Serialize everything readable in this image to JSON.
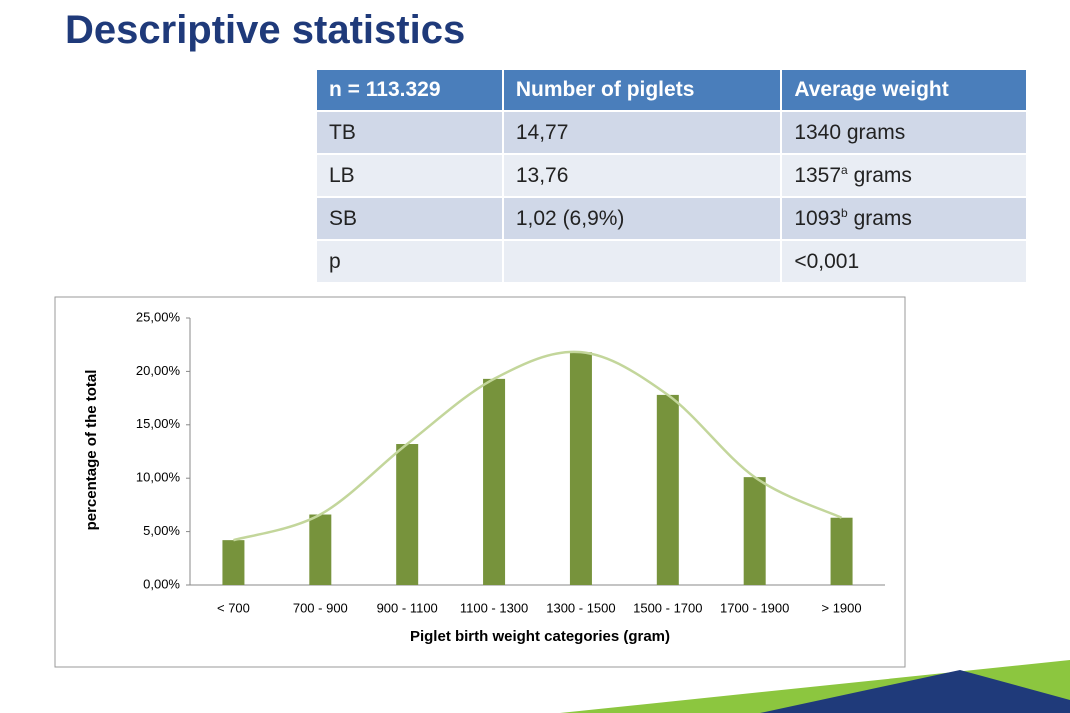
{
  "title": "Descriptive statistics",
  "table": {
    "header": [
      "n = 113.329",
      "Number of piglets",
      "Average weight"
    ],
    "rows": [
      [
        "TB",
        "14,77",
        "1340 grams"
      ],
      [
        "LB",
        "13,76",
        {
          "main": "1357",
          "sup": "a",
          "unit": "grams"
        }
      ],
      [
        "SB",
        "1,02 (6,9%)",
        {
          "main": "1093",
          "sup": "b",
          "unit": "grams"
        }
      ],
      [
        "p",
        null,
        "<0,001"
      ]
    ]
  },
  "chart_data": {
    "type": "bar",
    "categories": [
      "< 700",
      "700 - 900",
      "900 - 1100",
      "1100 - 1300",
      "1300 - 1500",
      "1500 - 1700",
      "1700 - 1900",
      "> 1900"
    ],
    "values": [
      4.2,
      6.6,
      13.2,
      19.3,
      21.8,
      17.8,
      10.1,
      6.3
    ],
    "color": "#77933c",
    "trendline_color": "#c3d69b",
    "x_label": "Piglet birth weight  categories (gram)",
    "y_label": "percentage of the total",
    "ylim": [
      0,
      25
    ],
    "yticks": [
      {
        "value": 0,
        "label": "0,00%"
      },
      {
        "value": 5,
        "label": "5,00%"
      },
      {
        "value": 10,
        "label": "10,00%"
      },
      {
        "value": 15,
        "label": "15,00%"
      },
      {
        "value": 20,
        "label": "20,00%"
      },
      {
        "value": 25,
        "label": "25,00%"
      }
    ]
  }
}
